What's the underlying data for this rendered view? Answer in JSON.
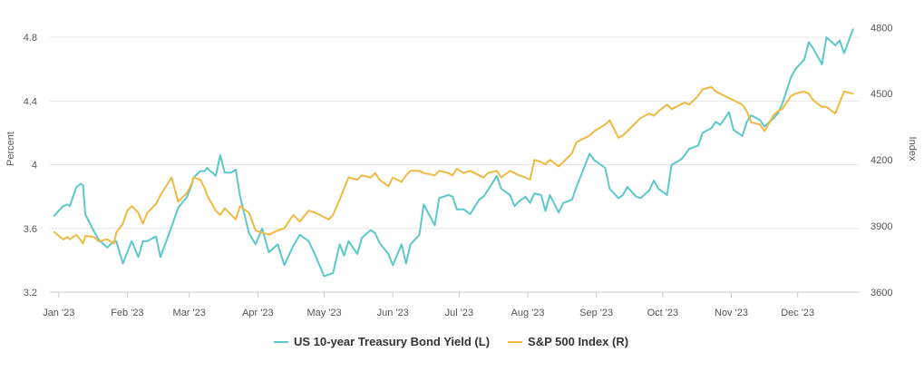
{
  "chart_data": {
    "type": "line",
    "title": "",
    "x_tick_labels": [
      "Jan '23",
      "Feb '23",
      "Mar '23",
      "Apr '23",
      "May '23",
      "Jun '23",
      "Jul '23",
      "Aug '23",
      "Sep '23",
      "Oct '23",
      "Nov '23",
      "Dec '23"
    ],
    "xlim": [
      "2022-12-28",
      "2023-12-29"
    ],
    "grid": true,
    "legend_position": "bottom",
    "y_left": {
      "label": "Percent",
      "ylim": [
        3.2,
        5.0
      ],
      "ticks": [
        3.2,
        3.6,
        4,
        4.4,
        4.8
      ]
    },
    "y_right": {
      "label": "Index",
      "ylim": [
        3600,
        4900
      ],
      "ticks": [
        3600,
        3900,
        4200,
        4500,
        4800
      ]
    },
    "series": [
      {
        "name": "US 10-year Treasury Bond Yield (L)",
        "axis": "left",
        "color": "#5bc8cc",
        "points": [
          [
            "2022-12-30",
            3.68
          ],
          [
            "2023-01-03",
            3.74
          ],
          [
            "2023-01-05",
            3.75
          ],
          [
            "2023-01-06",
            3.74
          ],
          [
            "2023-01-09",
            3.86
          ],
          [
            "2023-01-11",
            3.88
          ],
          [
            "2023-01-12",
            3.87
          ],
          [
            "2023-01-13",
            3.69
          ],
          [
            "2023-01-17",
            3.58
          ],
          [
            "2023-01-19",
            3.53
          ],
          [
            "2023-01-23",
            3.48
          ],
          [
            "2023-01-26",
            3.52
          ],
          [
            "2023-01-27",
            3.52
          ],
          [
            "2023-01-30",
            3.38
          ],
          [
            "2023-02-01",
            3.45
          ],
          [
            "2023-02-03",
            3.52
          ],
          [
            "2023-02-06",
            3.42
          ],
          [
            "2023-02-08",
            3.52
          ],
          [
            "2023-02-10",
            3.52
          ],
          [
            "2023-02-14",
            3.55
          ],
          [
            "2023-02-16",
            3.42
          ],
          [
            "2023-02-21",
            3.61
          ],
          [
            "2023-02-24",
            3.73
          ],
          [
            "2023-02-28",
            3.8
          ],
          [
            "2023-03-02",
            3.87
          ],
          [
            "2023-03-03",
            3.92
          ],
          [
            "2023-03-06",
            3.96
          ],
          [
            "2023-03-08",
            3.96
          ],
          [
            "2023-03-09",
            3.98
          ],
          [
            "2023-03-13",
            3.93
          ],
          [
            "2023-03-15",
            4.06
          ],
          [
            "2023-03-17",
            3.95
          ],
          [
            "2023-03-20",
            3.95
          ],
          [
            "2023-03-22",
            3.97
          ],
          [
            "2023-03-24",
            3.8
          ],
          [
            "2023-03-28",
            3.57
          ],
          [
            "2023-03-31",
            3.5
          ],
          [
            "2023-04-03",
            3.6
          ],
          [
            "2023-04-06",
            3.45
          ],
          [
            "2023-04-10",
            3.5
          ],
          [
            "2023-04-13",
            3.37
          ],
          [
            "2023-04-17",
            3.49
          ],
          [
            "2023-04-20",
            3.56
          ],
          [
            "2023-04-24",
            3.52
          ],
          [
            "2023-04-27",
            3.43
          ],
          [
            "2023-05-01",
            3.3
          ],
          [
            "2023-05-03",
            3.31
          ],
          [
            "2023-05-05",
            3.32
          ],
          [
            "2023-05-08",
            3.5
          ],
          [
            "2023-05-10",
            3.43
          ],
          [
            "2023-05-12",
            3.52
          ],
          [
            "2023-05-16",
            3.44
          ],
          [
            "2023-05-18",
            3.54
          ],
          [
            "2023-05-22",
            3.59
          ],
          [
            "2023-05-24",
            3.57
          ],
          [
            "2023-05-26",
            3.51
          ],
          [
            "2023-05-30",
            3.44
          ],
          [
            "2023-06-01",
            3.37
          ],
          [
            "2023-06-05",
            3.5
          ],
          [
            "2023-06-07",
            3.38
          ],
          [
            "2023-06-09",
            3.5
          ],
          [
            "2023-06-13",
            3.56
          ],
          [
            "2023-06-15",
            3.75
          ],
          [
            "2023-06-20",
            3.62
          ],
          [
            "2023-06-22",
            3.79
          ],
          [
            "2023-06-26",
            3.81
          ],
          [
            "2023-06-28",
            3.8
          ],
          [
            "2023-06-30",
            3.72
          ],
          [
            "2023-07-03",
            3.72
          ],
          [
            "2023-07-06",
            3.69
          ],
          [
            "2023-07-10",
            3.78
          ],
          [
            "2023-07-12",
            3.8
          ],
          [
            "2023-07-14",
            3.84
          ],
          [
            "2023-07-18",
            3.93
          ],
          [
            "2023-07-20",
            3.85
          ],
          [
            "2023-07-24",
            3.81
          ],
          [
            "2023-07-26",
            3.74
          ],
          [
            "2023-07-28",
            3.77
          ],
          [
            "2023-07-31",
            3.8
          ],
          [
            "2023-08-02",
            3.76
          ],
          [
            "2023-08-04",
            3.82
          ],
          [
            "2023-08-07",
            3.81
          ],
          [
            "2023-08-09",
            3.71
          ],
          [
            "2023-08-11",
            3.81
          ],
          [
            "2023-08-15",
            3.7
          ],
          [
            "2023-08-17",
            3.76
          ],
          [
            "2023-08-21",
            3.78
          ],
          [
            "2023-08-23",
            3.86
          ],
          [
            "2023-08-25",
            3.93
          ],
          [
            "2023-08-29",
            4.07
          ],
          [
            "2023-08-31",
            4.03
          ],
          [
            "2023-09-05",
            3.98
          ],
          [
            "2023-09-07",
            3.85
          ],
          [
            "2023-09-11",
            3.79
          ],
          [
            "2023-09-13",
            3.81
          ],
          [
            "2023-09-15",
            3.86
          ],
          [
            "2023-09-19",
            3.8
          ],
          [
            "2023-09-21",
            3.79
          ],
          [
            "2023-09-25",
            3.84
          ],
          [
            "2023-09-27",
            3.9
          ],
          [
            "2023-09-29",
            3.85
          ],
          [
            "2023-10-03",
            3.81
          ],
          [
            "2023-10-05",
            4.0
          ],
          [
            "2023-10-09",
            4.03
          ],
          [
            "2023-10-11",
            4.06
          ],
          [
            "2023-10-13",
            4.1
          ],
          [
            "2023-10-17",
            4.12
          ],
          [
            "2023-10-19",
            4.2
          ],
          [
            "2023-10-23",
            4.23
          ],
          [
            "2023-10-25",
            4.27
          ],
          [
            "2023-10-27",
            4.25
          ],
          [
            "2023-10-31",
            4.33
          ],
          [
            "2023-11-02",
            4.22
          ],
          [
            "2023-11-06",
            4.18
          ],
          [
            "2023-11-08",
            4.27
          ],
          [
            "2023-11-10",
            4.31
          ],
          [
            "2023-11-14",
            4.28
          ],
          [
            "2023-11-16",
            4.24
          ],
          [
            "2023-11-20",
            4.29
          ],
          [
            "2023-11-22",
            4.32
          ],
          [
            "2023-11-24",
            4.38
          ],
          [
            "2023-11-28",
            4.55
          ],
          [
            "2023-11-30",
            4.6
          ],
          [
            "2023-12-04",
            4.66
          ],
          [
            "2023-12-06",
            4.77
          ],
          [
            "2023-12-08",
            4.73
          ],
          [
            "2023-12-12",
            4.63
          ],
          [
            "2023-12-14",
            4.8
          ],
          [
            "2023-12-18",
            4.75
          ],
          [
            "2023-12-20",
            4.78
          ],
          [
            "2023-12-22",
            4.7
          ],
          [
            "2023-12-26",
            4.85
          ]
        ]
      },
      {
        "name": "S&P 500 Index (R)",
        "axis": "right",
        "color": "#f0b941",
        "points": [
          [
            "2022-12-30",
            3872
          ],
          [
            "2023-01-03",
            3839
          ],
          [
            "2023-01-05",
            3850
          ],
          [
            "2023-01-06",
            3840
          ],
          [
            "2023-01-09",
            3860
          ],
          [
            "2023-01-11",
            3835
          ],
          [
            "2023-01-12",
            3820
          ],
          [
            "2023-01-13",
            3855
          ],
          [
            "2023-01-17",
            3850
          ],
          [
            "2023-01-19",
            3830
          ],
          [
            "2023-01-23",
            3840
          ],
          [
            "2023-01-26",
            3820
          ],
          [
            "2023-01-27",
            3870
          ],
          [
            "2023-01-30",
            3910
          ],
          [
            "2023-02-01",
            3970
          ],
          [
            "2023-02-03",
            3990
          ],
          [
            "2023-02-06",
            3960
          ],
          [
            "2023-02-08",
            3910
          ],
          [
            "2023-02-10",
            3960
          ],
          [
            "2023-02-14",
            4000
          ],
          [
            "2023-02-16",
            4040
          ],
          [
            "2023-02-21",
            4120
          ],
          [
            "2023-02-24",
            4010
          ],
          [
            "2023-02-28",
            4050
          ],
          [
            "2023-03-02",
            4090
          ],
          [
            "2023-03-03",
            4120
          ],
          [
            "2023-03-06",
            4110
          ],
          [
            "2023-03-08",
            4070
          ],
          [
            "2023-03-09",
            4040
          ],
          [
            "2023-03-13",
            3970
          ],
          [
            "2023-03-15",
            3950
          ],
          [
            "2023-03-17",
            3980
          ],
          [
            "2023-03-20",
            3950
          ],
          [
            "2023-03-22",
            3930
          ],
          [
            "2023-03-24",
            3990
          ],
          [
            "2023-03-28",
            3960
          ],
          [
            "2023-03-31",
            3880
          ],
          [
            "2023-04-03",
            3870
          ],
          [
            "2023-04-06",
            3860
          ],
          [
            "2023-04-10",
            3880
          ],
          [
            "2023-04-13",
            3890
          ],
          [
            "2023-04-17",
            3950
          ],
          [
            "2023-04-20",
            3920
          ],
          [
            "2023-04-24",
            3970
          ],
          [
            "2023-04-27",
            3960
          ],
          [
            "2023-05-01",
            3940
          ],
          [
            "2023-05-03",
            3930
          ],
          [
            "2023-05-05",
            3950
          ],
          [
            "2023-05-08",
            4020
          ],
          [
            "2023-05-10",
            4070
          ],
          [
            "2023-05-12",
            4120
          ],
          [
            "2023-05-16",
            4110
          ],
          [
            "2023-05-18",
            4130
          ],
          [
            "2023-05-22",
            4120
          ],
          [
            "2023-05-24",
            4140
          ],
          [
            "2023-05-26",
            4110
          ],
          [
            "2023-05-30",
            4080
          ],
          [
            "2023-06-01",
            4120
          ],
          [
            "2023-06-05",
            4100
          ],
          [
            "2023-06-07",
            4130
          ],
          [
            "2023-06-09",
            4150
          ],
          [
            "2023-06-13",
            4150
          ],
          [
            "2023-06-15",
            4140
          ],
          [
            "2023-06-20",
            4130
          ],
          [
            "2023-06-22",
            4150
          ],
          [
            "2023-06-26",
            4140
          ],
          [
            "2023-06-28",
            4130
          ],
          [
            "2023-06-30",
            4160
          ],
          [
            "2023-07-03",
            4140
          ],
          [
            "2023-07-06",
            4150
          ],
          [
            "2023-07-10",
            4130
          ],
          [
            "2023-07-12",
            4120
          ],
          [
            "2023-07-14",
            4140
          ],
          [
            "2023-07-18",
            4150
          ],
          [
            "2023-07-20",
            4120
          ],
          [
            "2023-07-24",
            4150
          ],
          [
            "2023-07-26",
            4140
          ],
          [
            "2023-07-28",
            4130
          ],
          [
            "2023-07-31",
            4120
          ],
          [
            "2023-08-02",
            4110
          ],
          [
            "2023-08-04",
            4200
          ],
          [
            "2023-08-07",
            4190
          ],
          [
            "2023-08-09",
            4180
          ],
          [
            "2023-08-11",
            4200
          ],
          [
            "2023-08-15",
            4170
          ],
          [
            "2023-08-17",
            4190
          ],
          [
            "2023-08-21",
            4230
          ],
          [
            "2023-08-23",
            4280
          ],
          [
            "2023-08-25",
            4290
          ],
          [
            "2023-08-29",
            4310
          ],
          [
            "2023-08-31",
            4330
          ],
          [
            "2023-09-05",
            4360
          ],
          [
            "2023-09-07",
            4380
          ],
          [
            "2023-09-11",
            4300
          ],
          [
            "2023-09-13",
            4310
          ],
          [
            "2023-09-15",
            4330
          ],
          [
            "2023-09-19",
            4370
          ],
          [
            "2023-09-21",
            4390
          ],
          [
            "2023-09-25",
            4410
          ],
          [
            "2023-09-27",
            4400
          ],
          [
            "2023-09-29",
            4420
          ],
          [
            "2023-10-03",
            4450
          ],
          [
            "2023-10-05",
            4430
          ],
          [
            "2023-10-09",
            4450
          ],
          [
            "2023-10-11",
            4460
          ],
          [
            "2023-10-13",
            4450
          ],
          [
            "2023-10-17",
            4490
          ],
          [
            "2023-10-19",
            4520
          ],
          [
            "2023-10-23",
            4530
          ],
          [
            "2023-10-25",
            4510
          ],
          [
            "2023-10-27",
            4500
          ],
          [
            "2023-10-31",
            4480
          ],
          [
            "2023-11-02",
            4470
          ],
          [
            "2023-11-06",
            4450
          ],
          [
            "2023-11-08",
            4420
          ],
          [
            "2023-11-10",
            4370
          ],
          [
            "2023-11-14",
            4360
          ],
          [
            "2023-11-16",
            4330
          ],
          [
            "2023-11-20",
            4400
          ],
          [
            "2023-11-22",
            4420
          ],
          [
            "2023-11-24",
            4430
          ],
          [
            "2023-11-28",
            4490
          ],
          [
            "2023-11-30",
            4500
          ],
          [
            "2023-12-04",
            4510
          ],
          [
            "2023-12-06",
            4500
          ],
          [
            "2023-12-08",
            4470
          ],
          [
            "2023-12-12",
            4440
          ],
          [
            "2023-12-14",
            4440
          ],
          [
            "2023-12-18",
            4410
          ],
          [
            "2023-12-20",
            4460
          ],
          [
            "2023-12-22",
            4510
          ],
          [
            "2023-12-26",
            4500
          ]
        ]
      }
    ]
  }
}
